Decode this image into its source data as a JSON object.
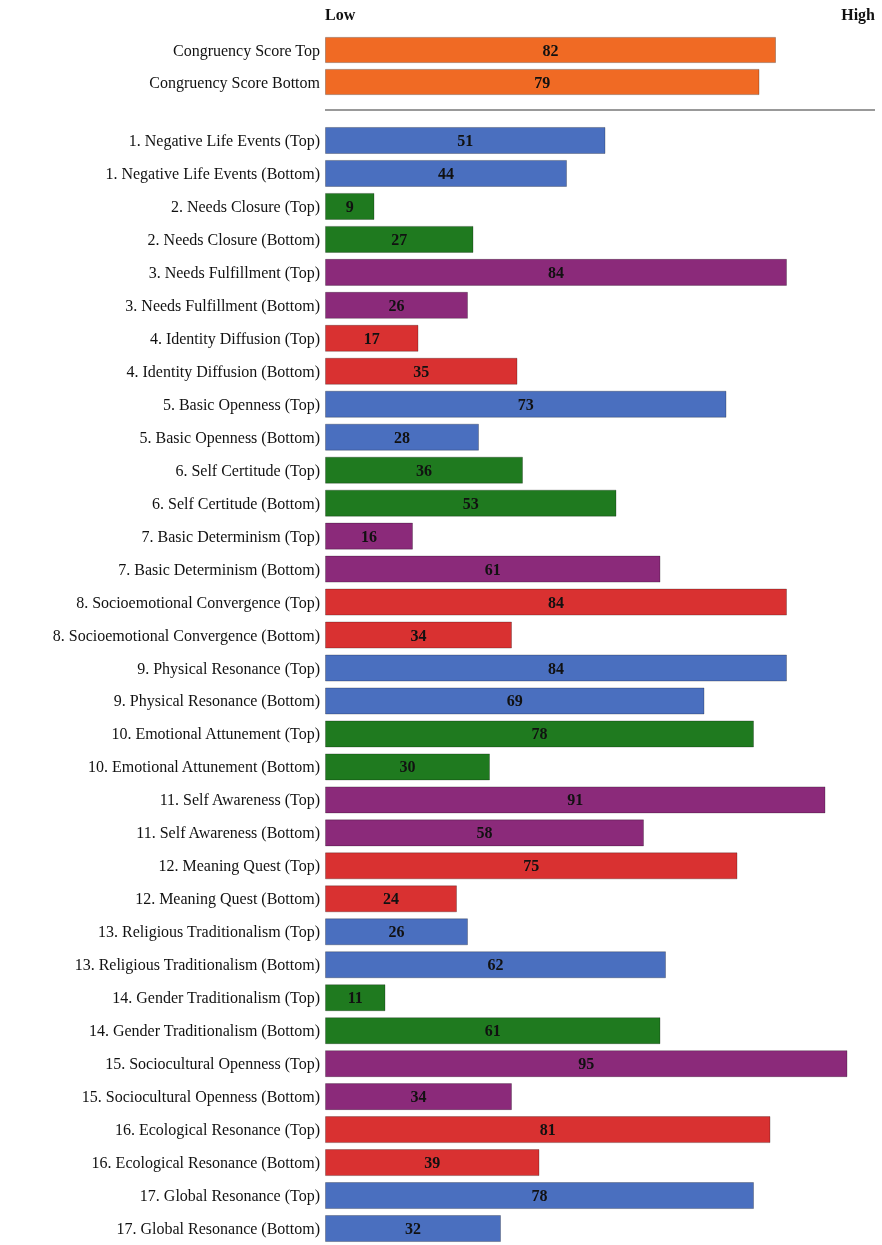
{
  "chart_data": [
    {
      "type": "bar",
      "orientation": "horizontal",
      "categories": [
        "Congruency Score Top",
        "Congruency Score Bottom"
      ],
      "values": [
        82,
        79
      ],
      "colors": [
        "#f06a24",
        "#f06a24"
      ],
      "xlim": [
        0,
        100
      ],
      "annotations": [
        "Low",
        "High"
      ],
      "data_labels": true,
      "grid": false
    },
    {
      "type": "bar",
      "orientation": "horizontal",
      "categories": [
        "1. Negative Life Events (Top)",
        "1. Negative Life Events (Bottom)",
        "2. Needs Closure (Top)",
        "2. Needs Closure (Bottom)",
        "3. Needs Fulfillment (Top)",
        "3. Needs Fulfillment (Bottom)",
        "4. Identity Diffusion (Top)",
        "4. Identity Diffusion (Bottom)",
        "5. Basic Openness (Top)",
        "5. Basic Openness (Bottom)",
        "6. Self Certitude (Top)",
        "6. Self Certitude (Bottom)",
        "7. Basic Determinism (Top)",
        "7. Basic Determinism (Bottom)",
        "8. Socioemotional Convergence (Top)",
        "8. Socioemotional Convergence (Bottom)",
        "9. Physical Resonance (Top)",
        "9. Physical Resonance (Bottom)",
        "10. Emotional Attunement (Top)",
        "10. Emotional Attunement (Bottom)",
        "11. Self Awareness (Top)",
        "11. Self Awareness (Bottom)",
        "12. Meaning Quest (Top)",
        "12. Meaning Quest (Bottom)",
        "13. Religious Traditionalism (Top)",
        "13. Religious Traditionalism (Bottom)",
        "14. Gender Traditionalism (Top)",
        "14. Gender Traditionalism (Bottom)",
        "15. Sociocultural Openness (Top)",
        "15. Sociocultural Openness (Bottom)",
        "16. Ecological Resonance (Top)",
        "16. Ecological Resonance (Bottom)",
        "17. Global Resonance (Top)",
        "17. Global Resonance (Bottom)"
      ],
      "values": [
        51,
        44,
        9,
        27,
        84,
        26,
        17,
        35,
        73,
        28,
        36,
        53,
        16,
        61,
        84,
        34,
        84,
        69,
        78,
        30,
        91,
        58,
        75,
        24,
        26,
        62,
        11,
        61,
        95,
        34,
        81,
        39,
        78,
        32
      ],
      "colors": [
        "#4a6fbf",
        "#4a6fbf",
        "#1f7a1f",
        "#1f7a1f",
        "#8b2a7a",
        "#8b2a7a",
        "#d93131",
        "#d93131",
        "#4a6fbf",
        "#4a6fbf",
        "#1f7a1f",
        "#1f7a1f",
        "#8b2a7a",
        "#8b2a7a",
        "#d93131",
        "#d93131",
        "#4a6fbf",
        "#4a6fbf",
        "#1f7a1f",
        "#1f7a1f",
        "#8b2a7a",
        "#8b2a7a",
        "#d93131",
        "#d93131",
        "#4a6fbf",
        "#4a6fbf",
        "#1f7a1f",
        "#1f7a1f",
        "#8b2a7a",
        "#8b2a7a",
        "#d93131",
        "#d93131",
        "#4a6fbf",
        "#4a6fbf"
      ],
      "tick_labels": "y",
      "data_labels": true,
      "grid": false
    }
  ]
}
